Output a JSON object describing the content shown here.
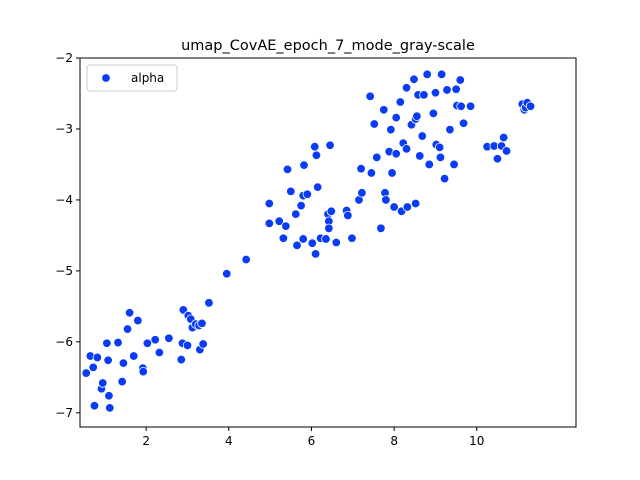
{
  "chart_data": {
    "type": "scatter",
    "title": "umap_CovAE_epoch_7_mode_gray-scale",
    "xlabel": "",
    "ylabel": "",
    "xlim": [
      0.4,
      12.4
    ],
    "ylim": [
      -7.2,
      -2.0
    ],
    "xticks": [
      2,
      4,
      6,
      8,
      10
    ],
    "xtick_labels": [
      "2",
      "4",
      "6",
      "8",
      "10"
    ],
    "yticks": [
      -7,
      -6,
      -5,
      -4,
      -3,
      -2
    ],
    "ytick_labels": [
      "−7",
      "−6",
      "−5",
      "−4",
      "−3",
      "−2"
    ],
    "legend_position": "top-left",
    "grid": false,
    "series": [
      {
        "name": "alpha",
        "color": "#0a3cf5",
        "points": [
          [
            0.55,
            -6.44
          ],
          [
            0.65,
            -6.2
          ],
          [
            0.72,
            -6.36
          ],
          [
            0.75,
            -6.9
          ],
          [
            0.82,
            -6.22
          ],
          [
            0.92,
            -6.66
          ],
          [
            0.95,
            -6.58
          ],
          [
            1.05,
            -6.02
          ],
          [
            1.08,
            -6.26
          ],
          [
            1.1,
            -6.76
          ],
          [
            1.12,
            -6.93
          ],
          [
            1.32,
            -6.01
          ],
          [
            1.42,
            -6.56
          ],
          [
            1.45,
            -6.3
          ],
          [
            1.55,
            -5.82
          ],
          [
            1.6,
            -5.59
          ],
          [
            1.7,
            -6.2
          ],
          [
            1.8,
            -5.7
          ],
          [
            1.92,
            -6.37
          ],
          [
            1.93,
            -6.42
          ],
          [
            2.03,
            -6.02
          ],
          [
            2.22,
            -5.97
          ],
          [
            2.32,
            -6.15
          ],
          [
            2.55,
            -5.95
          ],
          [
            2.85,
            -6.25
          ],
          [
            2.88,
            -6.02
          ],
          [
            2.9,
            -5.55
          ],
          [
            3.0,
            -6.05
          ],
          [
            3.02,
            -5.63
          ],
          [
            3.08,
            -5.68
          ],
          [
            3.12,
            -5.8
          ],
          [
            3.2,
            -5.75
          ],
          [
            3.28,
            -5.77
          ],
          [
            3.3,
            -6.11
          ],
          [
            3.35,
            -5.74
          ],
          [
            3.38,
            -6.03
          ],
          [
            3.52,
            -5.45
          ],
          [
            3.95,
            -5.04
          ],
          [
            4.42,
            -4.84
          ],
          [
            4.98,
            -4.05
          ],
          [
            4.98,
            -4.33
          ],
          [
            5.22,
            -4.3
          ],
          [
            5.32,
            -4.54
          ],
          [
            5.38,
            -4.37
          ],
          [
            5.42,
            -3.57
          ],
          [
            5.5,
            -3.88
          ],
          [
            5.62,
            -4.2
          ],
          [
            5.65,
            -4.64
          ],
          [
            5.75,
            -4.08
          ],
          [
            5.8,
            -3.94
          ],
          [
            5.8,
            -4.55
          ],
          [
            5.82,
            -3.51
          ],
          [
            5.9,
            -3.92
          ],
          [
            6.02,
            -4.61
          ],
          [
            6.08,
            -3.25
          ],
          [
            6.1,
            -4.76
          ],
          [
            6.12,
            -3.37
          ],
          [
            6.15,
            -3.82
          ],
          [
            6.22,
            -4.54
          ],
          [
            6.35,
            -4.55
          ],
          [
            6.4,
            -4.2
          ],
          [
            6.42,
            -4.3
          ],
          [
            6.42,
            -4.4
          ],
          [
            6.45,
            -3.23
          ],
          [
            6.48,
            -4.16
          ],
          [
            6.6,
            -4.6
          ],
          [
            6.85,
            -4.15
          ],
          [
            6.88,
            -4.22
          ],
          [
            6.98,
            -4.54
          ],
          [
            7.15,
            -4.0
          ],
          [
            7.2,
            -3.56
          ],
          [
            7.22,
            -3.9
          ],
          [
            7.42,
            -2.54
          ],
          [
            7.45,
            -3.62
          ],
          [
            7.52,
            -2.93
          ],
          [
            7.58,
            -3.4
          ],
          [
            7.68,
            -4.4
          ],
          [
            7.75,
            -2.73
          ],
          [
            7.78,
            -3.9
          ],
          [
            7.8,
            -4.0
          ],
          [
            7.88,
            -3.32
          ],
          [
            7.92,
            -3.01
          ],
          [
            7.95,
            -3.62
          ],
          [
            8.0,
            -4.1
          ],
          [
            8.05,
            -2.84
          ],
          [
            8.05,
            -3.35
          ],
          [
            8.15,
            -2.62
          ],
          [
            8.18,
            -4.16
          ],
          [
            8.22,
            -3.2
          ],
          [
            8.3,
            -2.42
          ],
          [
            8.3,
            -3.28
          ],
          [
            8.32,
            -4.1
          ],
          [
            8.42,
            -2.94
          ],
          [
            8.48,
            -2.3
          ],
          [
            8.52,
            -4.05
          ],
          [
            8.52,
            -2.86
          ],
          [
            8.55,
            -2.82
          ],
          [
            8.58,
            -2.52
          ],
          [
            8.62,
            -3.38
          ],
          [
            8.68,
            -3.1
          ],
          [
            8.72,
            -2.52
          ],
          [
            8.8,
            -2.23
          ],
          [
            8.85,
            -3.5
          ],
          [
            8.95,
            -2.78
          ],
          [
            9.0,
            -2.49
          ],
          [
            9.02,
            -3.22
          ],
          [
            9.1,
            -3.26
          ],
          [
            9.12,
            -3.4
          ],
          [
            9.15,
            -2.23
          ],
          [
            9.22,
            -3.7
          ],
          [
            9.28,
            -2.45
          ],
          [
            9.35,
            -3.01
          ],
          [
            9.45,
            -3.5
          ],
          [
            9.5,
            -2.44
          ],
          [
            9.52,
            -2.67
          ],
          [
            9.6,
            -2.31
          ],
          [
            9.62,
            -2.68
          ],
          [
            9.68,
            -2.92
          ],
          [
            9.85,
            -2.68
          ],
          [
            10.25,
            -3.25
          ],
          [
            10.42,
            -3.24
          ],
          [
            10.5,
            -3.42
          ],
          [
            10.6,
            -3.24
          ],
          [
            10.65,
            -3.12
          ],
          [
            10.72,
            -3.31
          ],
          [
            11.1,
            -2.65
          ],
          [
            11.15,
            -2.73
          ],
          [
            11.18,
            -2.7
          ],
          [
            11.22,
            -2.63
          ],
          [
            11.3,
            -2.68
          ]
        ]
      }
    ]
  }
}
